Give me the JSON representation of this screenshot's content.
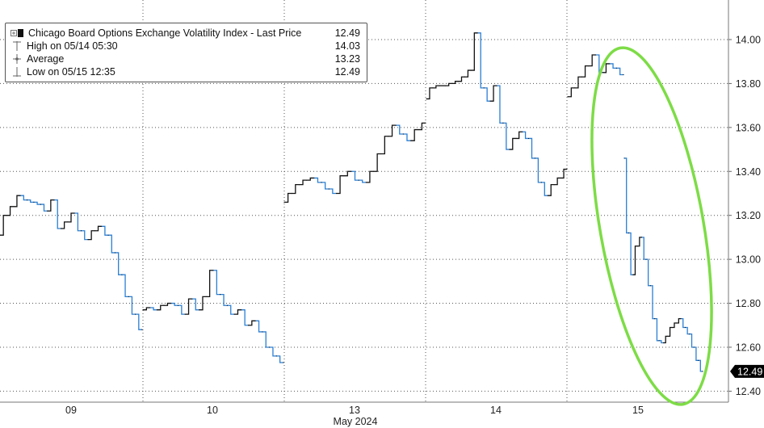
{
  "legend": {
    "series_label": "Chicago Board Options Exchange Volatility Index - Last Price",
    "series_value": "12.49",
    "high_label": "High on 05/14 05:30",
    "high_value": "14.03",
    "average_label": "Average",
    "average_value": "13.23",
    "low_label": "Low on 05/15 12:35",
    "low_value": "12.49"
  },
  "chart_data": {
    "type": "line",
    "title": "",
    "xlabel": "May 2024",
    "ylabel": "",
    "x_ticks": [
      "09",
      "10",
      "13",
      "14",
      "15"
    ],
    "y_ticks": [
      "12.40",
      "12.60",
      "12.80",
      "13.00",
      "13.20",
      "13.40",
      "13.60",
      "13.80",
      "14.00"
    ],
    "ylim": [
      12.35,
      14.18
    ],
    "last_price_label": "12.49",
    "grid": true,
    "colors": {
      "up": "#111111",
      "down": "#2a7fd4",
      "highlight": "#7ddc46",
      "tag": "#000000"
    },
    "sessions": [
      {
        "day": "09",
        "values": [
          13.11,
          13.2,
          13.24,
          13.29,
          13.27,
          13.26,
          13.25,
          13.22,
          13.27,
          13.14,
          13.17,
          13.21,
          13.13,
          13.09,
          13.13,
          13.15,
          13.11,
          13.03,
          12.93,
          12.83,
          12.75,
          12.68
        ]
      },
      {
        "day": "10",
        "values": [
          12.77,
          12.78,
          12.77,
          12.79,
          12.8,
          12.79,
          12.75,
          12.82,
          12.77,
          12.83,
          12.95,
          12.84,
          12.79,
          12.75,
          12.77,
          12.7,
          12.72,
          12.67,
          12.6,
          12.56,
          12.53
        ]
      },
      {
        "day": "13",
        "values": [
          13.26,
          13.3,
          13.34,
          13.36,
          13.37,
          13.35,
          13.32,
          13.3,
          13.38,
          13.4,
          13.36,
          13.35,
          13.4,
          13.48,
          13.56,
          13.61,
          13.57,
          13.54,
          13.59,
          13.62
        ]
      },
      {
        "day": "14",
        "values": [
          13.73,
          13.78,
          13.79,
          13.79,
          13.8,
          13.81,
          13.83,
          13.86,
          14.03,
          13.78,
          13.72,
          13.79,
          13.62,
          13.5,
          13.55,
          13.58,
          13.55,
          13.46,
          13.35,
          13.29,
          13.34,
          13.37,
          13.41
        ]
      },
      {
        "day": "15-pre",
        "values": [
          13.74,
          13.78,
          13.83,
          13.88,
          13.93,
          13.85,
          13.89,
          13.87,
          13.84
        ]
      },
      {
        "day": "15",
        "values": [
          13.46,
          13.12,
          12.93,
          13.06,
          13.1,
          13.0,
          12.88,
          12.73,
          12.63,
          12.62,
          12.65,
          12.69,
          12.71,
          12.73,
          12.69,
          12.66,
          12.6,
          12.54,
          12.49
        ]
      }
    ]
  }
}
